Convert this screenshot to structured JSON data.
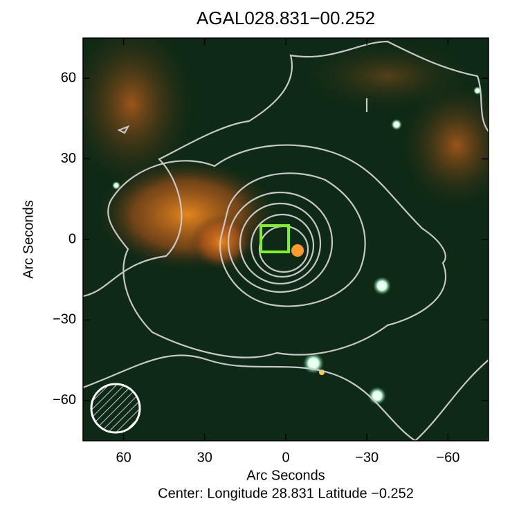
{
  "chart_data": {
    "type": "image",
    "title": "AGAL028.831−00.252",
    "x_label": "Arc Seconds",
    "y_label": "Arc Seconds",
    "footer": "Center:  Longitude 28.831 Latitude −0.252",
    "xlim": [
      75,
      -75
    ],
    "ylim": [
      -75,
      75
    ],
    "xticks": [
      60,
      30,
      0,
      {
        "value": -30,
        "label": "−30"
      },
      {
        "value": -60,
        "label": "−60"
      }
    ],
    "yticks": [
      {
        "value": -60,
        "label": "−60"
      },
      {
        "value": -30,
        "label": "−30"
      },
      0,
      30,
      60
    ]
  }
}
